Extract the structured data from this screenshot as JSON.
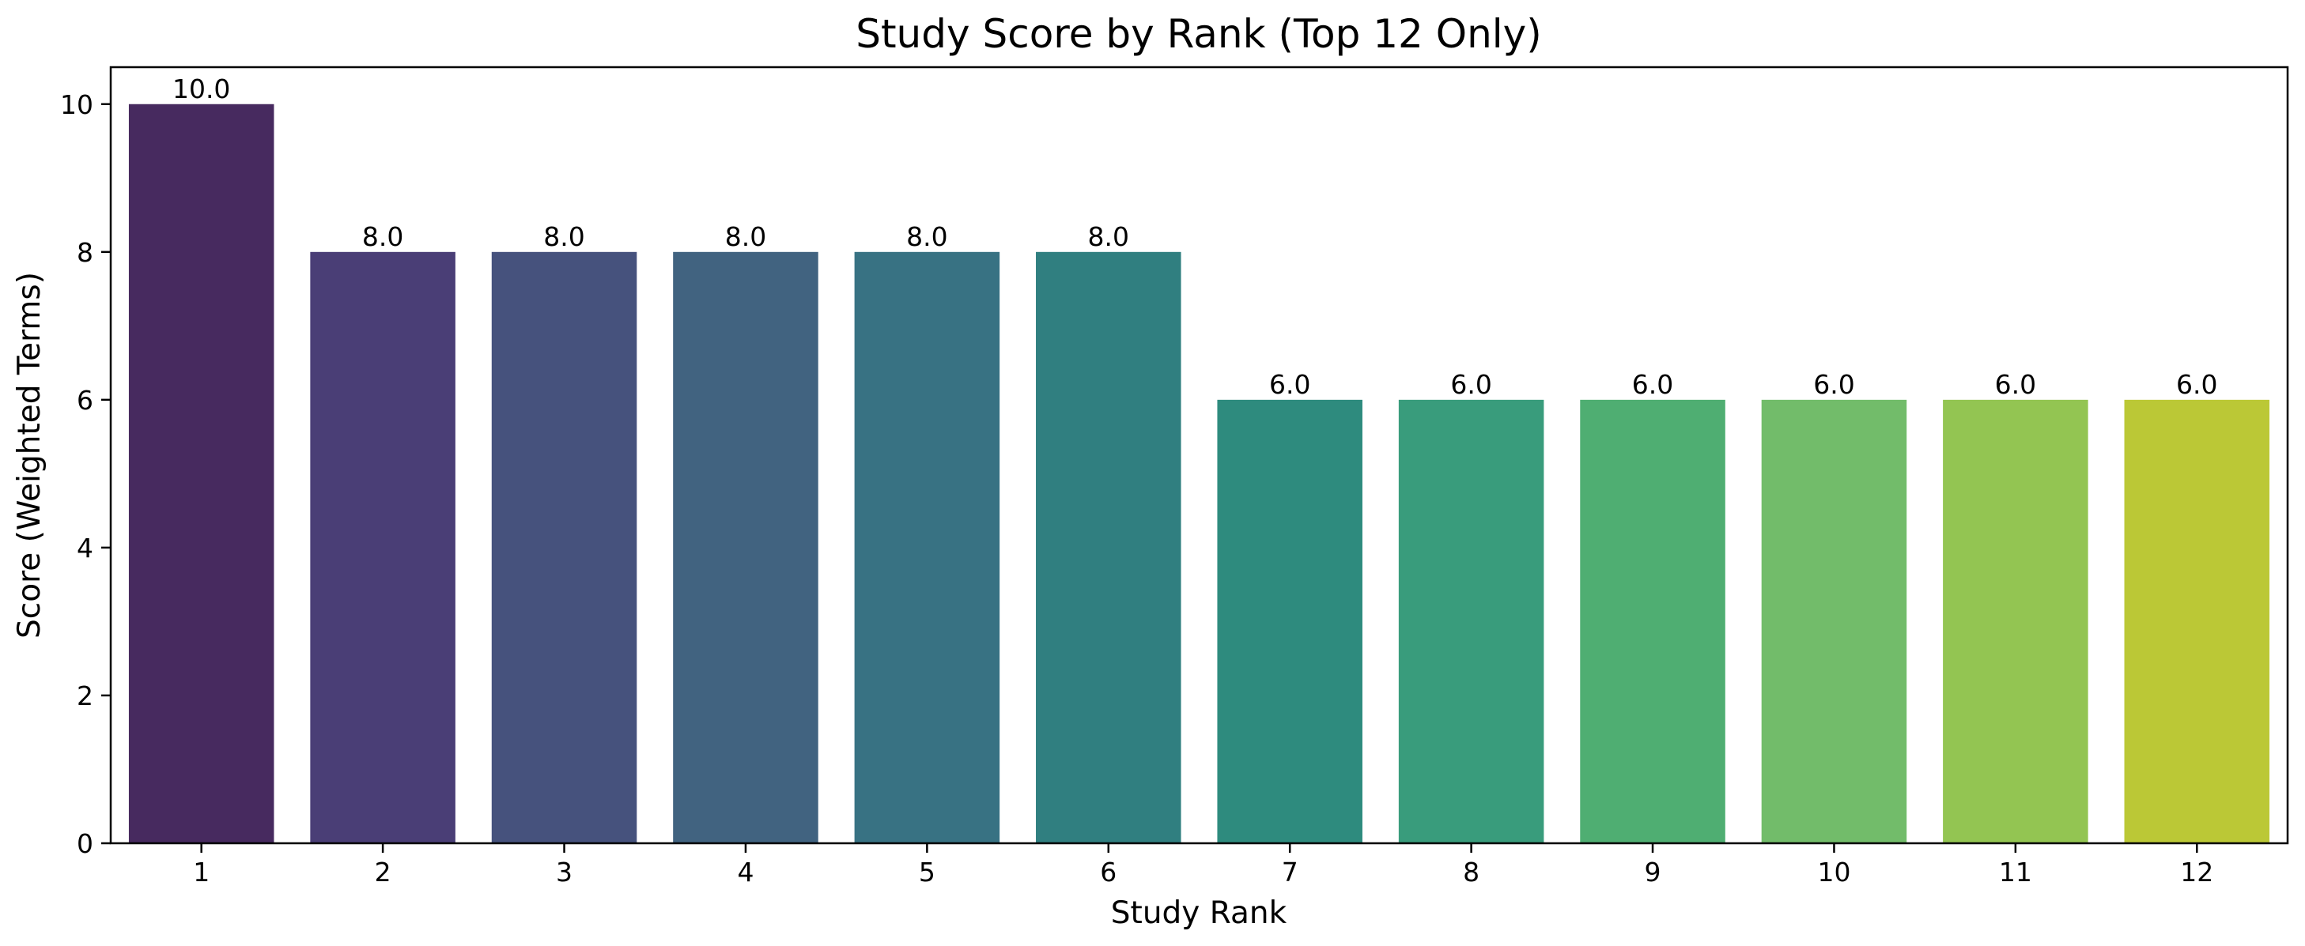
{
  "chart_data": {
    "type": "bar",
    "title": "Study Score by Rank (Top 12 Only)",
    "xlabel": "Study Rank",
    "ylabel": "Score (Weighted Terms)",
    "categories": [
      "1",
      "2",
      "3",
      "4",
      "5",
      "6",
      "7",
      "8",
      "9",
      "10",
      "11",
      "12"
    ],
    "values": [
      10.0,
      8.0,
      8.0,
      8.0,
      8.0,
      8.0,
      6.0,
      6.0,
      6.0,
      6.0,
      6.0,
      6.0
    ],
    "data_labels": [
      "10.0",
      "8.0",
      "8.0",
      "8.0",
      "8.0",
      "8.0",
      "6.0",
      "6.0",
      "6.0",
      "6.0",
      "6.0",
      "6.0"
    ],
    "ylim": [
      0,
      10.5
    ],
    "yticks": [
      0,
      2,
      4,
      6,
      8,
      10
    ],
    "ytick_labels": [
      "0",
      "2",
      "4",
      "6",
      "8",
      "10"
    ],
    "grid": false,
    "legend": "none",
    "colors": [
      "#472a5f",
      "#4a3e76",
      "#46527d",
      "#416380",
      "#387283",
      "#307f80",
      "#2e8b7e",
      "#399c7c",
      "#4fae72",
      "#72bc6a",
      "#93c552",
      "#bbc836"
    ]
  }
}
